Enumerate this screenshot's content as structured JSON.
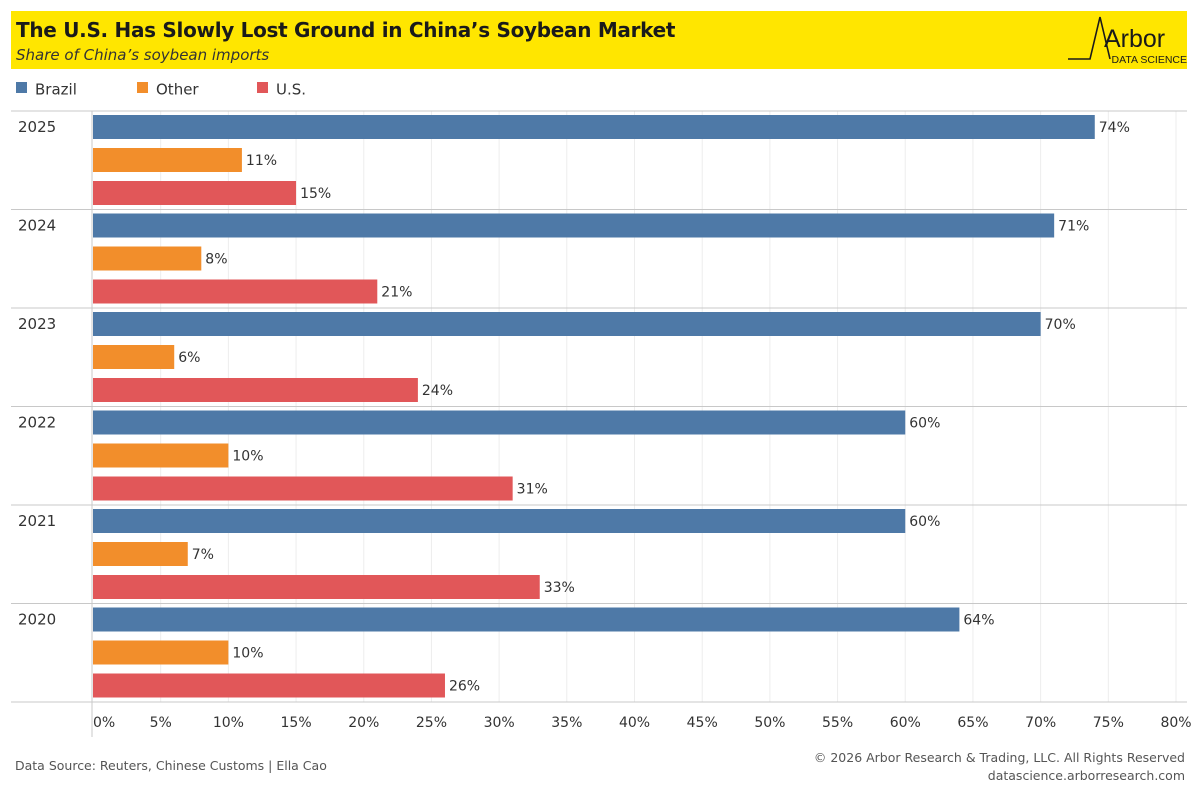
{
  "header": {
    "title": "The U.S. Has Slowly Lost Ground in China’s Soybean Market",
    "subtitle": "Share of China’s soybean imports",
    "logo_word": "Arbor",
    "logo_sub": "DATA SCIENCE",
    "background_color": "#ffe600"
  },
  "chart_data": {
    "type": "bar",
    "orientation": "horizontal",
    "title": "The U.S. Has Slowly Lost Ground in China’s Soybean Market",
    "subtitle": "Share of China’s soybean imports",
    "categories": [
      "2025",
      "2024",
      "2023",
      "2022",
      "2021",
      "2020"
    ],
    "series": [
      {
        "name": "Brazil",
        "color": "#4e79a7",
        "values": [
          74,
          71,
          70,
          60,
          60,
          64
        ],
        "labels": [
          "74%",
          "71%",
          "70%",
          "60%",
          "60%",
          "64%"
        ]
      },
      {
        "name": "Other",
        "color": "#f28e2b",
        "values": [
          11,
          8,
          6,
          10,
          7,
          10
        ],
        "labels": [
          "11%",
          "8%",
          "6%",
          "10%",
          "7%",
          "10%"
        ]
      },
      {
        "name": "U.S.",
        "color": "#e15759",
        "values": [
          15,
          21,
          24,
          31,
          33,
          26
        ],
        "labels": [
          "15%",
          "21%",
          "24%",
          "31%",
          "33%",
          "26%"
        ]
      }
    ],
    "xlim": [
      0,
      80
    ],
    "xticks": [
      0,
      5,
      10,
      15,
      20,
      25,
      30,
      35,
      40,
      45,
      50,
      55,
      60,
      65,
      70,
      75,
      80
    ],
    "xtick_labels": [
      "0%",
      "5%",
      "10%",
      "15%",
      "20%",
      "25%",
      "30%",
      "35%",
      "40%",
      "45%",
      "50%",
      "55%",
      "60%",
      "65%",
      "70%",
      "75%",
      "80%"
    ],
    "grid": true,
    "legend_position": "top-left"
  },
  "footer": {
    "source": "Data Source: Reuters, Chinese Customs | Ella Cao",
    "copyright": "© 2026 Arbor Research & Trading, LLC. All Rights Reserved",
    "website": "datascience.arborresearch.com"
  }
}
